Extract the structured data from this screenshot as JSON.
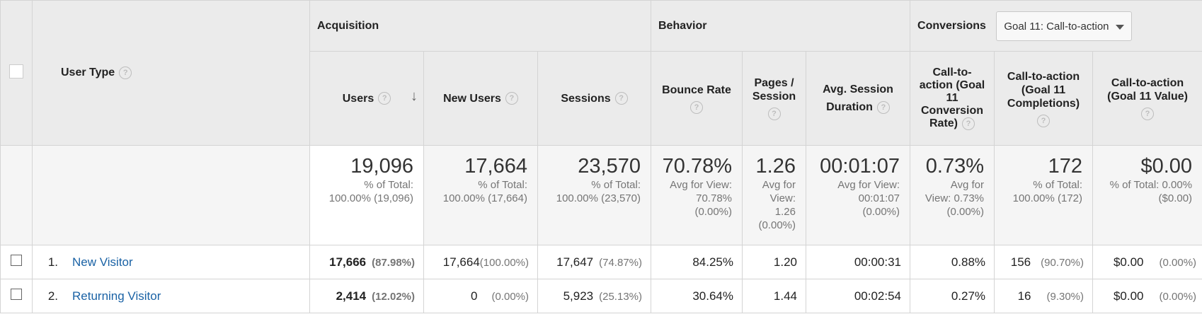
{
  "header": {
    "dimension_label": "User Type",
    "groups": {
      "acquisition": "Acquisition",
      "behavior": "Behavior",
      "conversions": "Conversions"
    },
    "goal_selector": {
      "selected": "Goal 11: Call-to-action"
    },
    "columns": {
      "users": "Users",
      "new_users": "New Users",
      "sessions": "Sessions",
      "bounce_rate": "Bounce Rate",
      "pages_session_1": "Pages /",
      "pages_session_2": "Session",
      "avg_duration_1": "Avg. Session",
      "avg_duration_2": "Duration",
      "conv_rate_1": "Call-to-",
      "conv_rate_2": "action (Goal",
      "conv_rate_3": "11",
      "conv_rate_4": "Conversion",
      "conv_rate_5": "Rate)",
      "completions_1": "Call-to-action",
      "completions_2": "(Goal 11",
      "completions_3": "Completions)",
      "value_1": "Call-to-action",
      "value_2": "(Goal 11 Value)"
    }
  },
  "totals": {
    "users": {
      "value": "19,096",
      "sub1": "% of Total:",
      "sub2": "100.00% (19,096)"
    },
    "new_users": {
      "value": "17,664",
      "sub1": "% of Total:",
      "sub2": "100.00% (17,664)"
    },
    "sessions": {
      "value": "23,570",
      "sub1": "% of Total:",
      "sub2": "100.00% (23,570)"
    },
    "bounce_rate": {
      "value": "70.78%",
      "sub1": "Avg for View:",
      "sub2": "70.78%",
      "sub3": "(0.00%)"
    },
    "pages_session": {
      "value": "1.26",
      "sub1": "Avg for",
      "sub2": "View:",
      "sub3": "1.26",
      "sub4": "(0.00%)"
    },
    "avg_duration": {
      "value": "00:01:07",
      "sub1": "Avg for View:",
      "sub2": "00:01:07",
      "sub3": "(0.00%)"
    },
    "conv_rate": {
      "value": "0.73%",
      "sub1": "Avg for",
      "sub2": "View: 0.73%",
      "sub3": "(0.00%)"
    },
    "completions": {
      "value": "172",
      "sub1": "% of Total:",
      "sub2": "100.00% (172)"
    },
    "value": {
      "value": "$0.00",
      "sub1": "% of Total: 0.00%",
      "sub2": "($0.00)"
    }
  },
  "rows": [
    {
      "index": "1.",
      "user_type": "New Visitor",
      "users": "17,666",
      "users_pct": "(87.98%)",
      "new_users": "17,664",
      "new_users_pct": "(100.00%)",
      "sessions": "17,647",
      "sessions_pct": "(74.87%)",
      "bounce_rate": "84.25%",
      "pages_session": "1.20",
      "avg_duration": "00:00:31",
      "conv_rate": "0.88%",
      "completions": "156",
      "completions_pct": "(90.70%)",
      "value": "$0.00",
      "value_pct": "(0.00%)"
    },
    {
      "index": "2.",
      "user_type": "Returning Visitor",
      "users": "2,414",
      "users_pct": "(12.02%)",
      "new_users": "0",
      "new_users_pct": "(0.00%)",
      "sessions": "5,923",
      "sessions_pct": "(25.13%)",
      "bounce_rate": "30.64%",
      "pages_session": "1.44",
      "avg_duration": "00:02:54",
      "conv_rate": "0.27%",
      "completions": "16",
      "completions_pct": "(9.30%)",
      "value": "$0.00",
      "value_pct": "(0.00%)"
    }
  ]
}
